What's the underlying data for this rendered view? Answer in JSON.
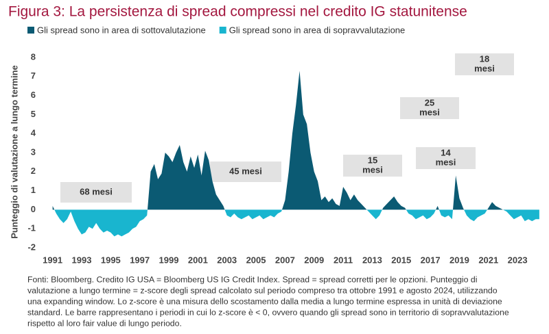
{
  "chart_data": {
    "type": "area",
    "title": "Figura 3: La persistenza di spread compressi nel credito IG statunitense",
    "ylabel": "Punteggio di valutazione a lungo termine",
    "legend": [
      {
        "name": "Gli spread sono in area di sottovalutazione",
        "color": "#0b5a73"
      },
      {
        "name": "Gli spread sono in area di sopravvalutazione",
        "color": "#19b5cf"
      }
    ],
    "x": [
      1991,
      1991.25,
      1991.5,
      1991.75,
      1992,
      1992.25,
      1992.5,
      1992.75,
      1993,
      1993.25,
      1993.5,
      1993.75,
      1994,
      1994.25,
      1994.5,
      1994.75,
      1995,
      1995.25,
      1995.5,
      1995.75,
      1996,
      1996.25,
      1996.5,
      1996.75,
      1997,
      1997.25,
      1997.5,
      1997.75,
      1998,
      1998.25,
      1998.5,
      1998.75,
      1999,
      1999.25,
      1999.5,
      1999.75,
      2000,
      2000.25,
      2000.5,
      2000.75,
      2001,
      2001.25,
      2001.5,
      2001.75,
      2002,
      2002.25,
      2002.5,
      2002.75,
      2003,
      2003.25,
      2003.5,
      2003.75,
      2004,
      2004.25,
      2004.5,
      2004.75,
      2005,
      2005.25,
      2005.5,
      2005.75,
      2006,
      2006.25,
      2006.5,
      2006.75,
      2007,
      2007.25,
      2007.5,
      2007.75,
      2008,
      2008.25,
      2008.5,
      2008.75,
      2009,
      2009.25,
      2009.5,
      2009.75,
      2010,
      2010.25,
      2010.5,
      2010.75,
      2011,
      2011.25,
      2011.5,
      2011.75,
      2012,
      2012.25,
      2012.5,
      2012.75,
      2013,
      2013.25,
      2013.5,
      2013.75,
      2014,
      2014.25,
      2014.5,
      2014.75,
      2015,
      2015.25,
      2015.5,
      2015.75,
      2016,
      2016.25,
      2016.5,
      2016.75,
      2017,
      2017.25,
      2017.5,
      2017.75,
      2018,
      2018.25,
      2018.5,
      2018.75,
      2019,
      2019.25,
      2019.5,
      2019.75,
      2020,
      2020.25,
      2020.5,
      2020.75,
      2021,
      2021.25,
      2021.5,
      2021.75,
      2022,
      2022.25,
      2022.5,
      2022.75,
      2023,
      2023.25,
      2023.5,
      2023.75,
      2024,
      2024.25,
      2024.5
    ],
    "values": [
      0.2,
      -0.2,
      -0.5,
      -0.7,
      -0.5,
      -0.1,
      -0.6,
      -1.0,
      -1.3,
      -1.2,
      -0.9,
      -1.0,
      -0.7,
      -1.0,
      -1.2,
      -1.1,
      -1.2,
      -1.4,
      -1.3,
      -1.4,
      -1.3,
      -1.2,
      -1.0,
      -0.9,
      -0.6,
      -0.5,
      -0.3,
      2.0,
      2.4,
      1.6,
      1.9,
      3.0,
      2.8,
      2.5,
      3.0,
      3.4,
      2.5,
      2.0,
      2.8,
      2.2,
      2.9,
      1.8,
      3.1,
      2.6,
      1.5,
      0.8,
      0.5,
      0.2,
      -0.3,
      -0.4,
      -0.2,
      -0.4,
      -0.5,
      -0.4,
      -0.3,
      -0.5,
      -0.4,
      -0.3,
      -0.5,
      -0.4,
      -0.3,
      -0.4,
      -0.2,
      -0.1,
      0.5,
      2.0,
      4.0,
      5.5,
      7.3,
      5.0,
      4.5,
      3.0,
      2.0,
      1.5,
      0.5,
      0.7,
      0.4,
      0.6,
      0.3,
      0.2,
      1.2,
      0.9,
      0.5,
      0.8,
      0.5,
      0.3,
      0.1,
      -0.1,
      -0.3,
      -0.5,
      -0.3,
      0.1,
      0.3,
      0.5,
      0.7,
      0.4,
      0.2,
      0.1,
      -0.2,
      -0.3,
      -0.5,
      -0.4,
      -0.3,
      -0.5,
      -0.4,
      -0.2,
      0.2,
      -0.3,
      -0.4,
      -0.3,
      -0.5,
      1.8,
      0.6,
      0.1,
      -0.3,
      -0.5,
      -0.6,
      -0.4,
      -0.3,
      -0.2,
      0.1,
      0.4,
      0.2,
      0.1,
      0.0,
      -0.1,
      -0.3,
      -0.5,
      -0.4,
      -0.3,
      -0.6,
      -0.5,
      -0.6,
      -0.5,
      -0.5
    ],
    "xlim": [
      1990.45,
      2024.6
    ],
    "xticks": [
      1991,
      1993,
      1995,
      1997,
      1999,
      2001,
      2003,
      2005,
      2007,
      2009,
      2011,
      2013,
      2015,
      2017,
      2019,
      2021,
      2023
    ],
    "ylim": [
      -2,
      8
    ],
    "yticks": [
      -2,
      -1,
      0,
      1,
      2,
      3,
      4,
      5,
      6,
      7,
      8
    ],
    "annotations": [
      [
        "68 mesi"
      ],
      [
        "45 mesi"
      ],
      [
        "15",
        "mesi"
      ],
      [
        "25",
        "mesi"
      ],
      [
        "14",
        "mesi"
      ],
      [
        "18",
        "mesi"
      ]
    ],
    "footnote": [
      "Fonti: Bloomberg. Credito IG USA = Bloomberg US IG Credit Index. Spread = spread corretti per le opzioni. Punteggio di",
      "valutazione a lungo termine = z-score degli spread calcolato sul periodo compreso tra ottobre 1991 e agosto 2024, utilizzando",
      "una expanding window. Lo z-score è una misura dello scostamento dalla media a lungo termine espressa in unità di deviazione",
      "standard. Le barre rappresentano i periodi in cui lo z-score è < 0, ovvero quando gli spread sono in territorio di sopravvalutazione",
      "rispetto al loro fair value di lungo periodo."
    ]
  }
}
